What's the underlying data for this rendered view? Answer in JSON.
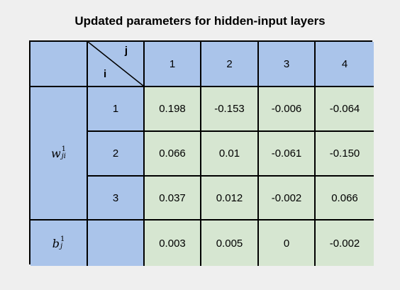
{
  "title": "Updated parameters for hidden-input layers",
  "header": {
    "j_label": "j",
    "i_label": "i",
    "columns": [
      "1",
      "2",
      "3",
      "4"
    ]
  },
  "weights": {
    "symbol": "w",
    "superscript": "1",
    "subscript": "ji",
    "rows": [
      {
        "i": "1",
        "values": [
          "0.198",
          "-0.153",
          "-0.006",
          "-0.064"
        ]
      },
      {
        "i": "2",
        "values": [
          "0.066",
          "0.01",
          "-0.061",
          "-0.150"
        ]
      },
      {
        "i": "3",
        "values": [
          "0.037",
          "0.012",
          "-0.002",
          "0.066"
        ]
      }
    ]
  },
  "bias": {
    "symbol": "b",
    "superscript": "1",
    "subscript": "j",
    "values": [
      "0.003",
      "0.005",
      "0",
      "-0.002"
    ]
  },
  "colors": {
    "header_blue": "#aac4ea",
    "value_green": "#d6e6d1",
    "background": "#efefef"
  }
}
